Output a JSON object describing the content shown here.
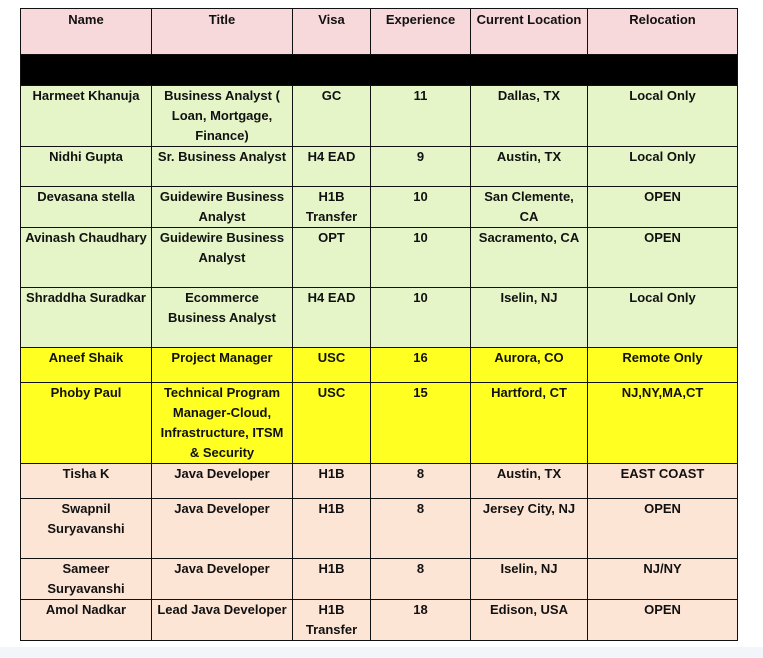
{
  "headers": [
    "Name",
    "Title",
    "Visa",
    "Experience",
    "Current Location",
    "Relocation"
  ],
  "colors": {
    "header": "#f7d9db",
    "separator": "#000000",
    "green": "#e5f5c8",
    "yellow": "#ffff22",
    "peach": "#fde5d6"
  },
  "rows": [
    {
      "group": "green",
      "cells": [
        "Harmeet Khanuja",
        "Business Analyst ( Loan, Mortgage, Finance)",
        "GC",
        "11",
        "Dallas, TX",
        "Local Only"
      ]
    },
    {
      "group": "green",
      "cells": [
        "Nidhi Gupta",
        "Sr. Business Analyst",
        "H4 EAD",
        "9",
        "Austin, TX",
        "Local Only"
      ]
    },
    {
      "group": "green",
      "cells": [
        "Devasana stella",
        "Guidewire Business Analyst",
        "H1B Transfer",
        "10",
        "San Clemente, CA",
        "OPEN"
      ]
    },
    {
      "group": "green",
      "cells": [
        "Avinash Chaudhary",
        "Guidewire Business Analyst",
        "OPT",
        "10",
        "Sacramento, CA",
        "OPEN"
      ]
    },
    {
      "group": "green",
      "cells": [
        "Shraddha Suradkar",
        "Ecommerce Business Analyst",
        "H4 EAD",
        "10",
        "Iselin, NJ",
        "Local Only"
      ]
    },
    {
      "group": "yellow",
      "cells": [
        "Aneef Shaik",
        "Project Manager",
        "USC",
        "16",
        "Aurora, CO",
        "Remote Only"
      ]
    },
    {
      "group": "yellow",
      "cells": [
        "Phoby Paul",
        "Technical Program Manager-Cloud, Infrastructure, ITSM & Security",
        "USC",
        "15",
        "Hartford, CT",
        "NJ,NY,MA,CT"
      ]
    },
    {
      "group": "peach",
      "cells": [
        "Tisha K",
        "Java Developer",
        "H1B",
        "8",
        "Austin, TX",
        "EAST COAST"
      ]
    },
    {
      "group": "peach",
      "cells": [
        "Swapnil Suryavanshi",
        "Java Developer",
        "H1B",
        "8",
        "Jersey City, NJ",
        "OPEN"
      ]
    },
    {
      "group": "peach",
      "cells": [
        "Sameer Suryavanshi",
        "Java Developer",
        "H1B",
        "8",
        "Iselin, NJ",
        "NJ/NY"
      ]
    },
    {
      "group": "peach",
      "cells": [
        "Amol Nadkar",
        "Lead Java Developer",
        "H1B Transfer",
        "18",
        "Edison, USA",
        "OPEN"
      ]
    }
  ]
}
